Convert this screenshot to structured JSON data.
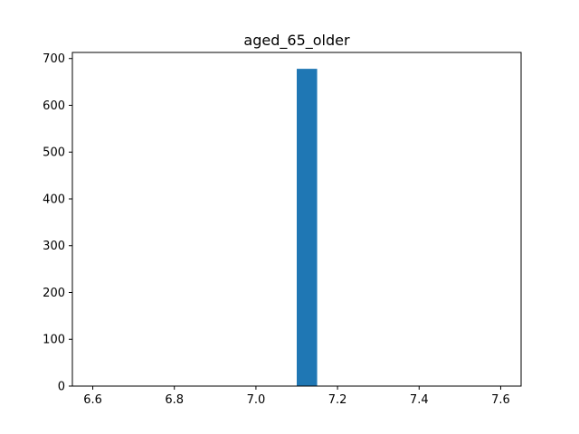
{
  "chart_data": {
    "type": "bar",
    "title": "aged_65_older",
    "xlabel": "",
    "ylabel": "",
    "xlim": [
      6.55,
      7.65
    ],
    "ylim": [
      0,
      713
    ],
    "x_ticks": [
      "6.6",
      "6.8",
      "7.0",
      "7.2",
      "7.4",
      "7.6"
    ],
    "y_ticks": [
      "0",
      "100",
      "200",
      "300",
      "400",
      "500",
      "600",
      "700"
    ],
    "bins": [
      {
        "x0": 7.1,
        "x1": 7.15,
        "value": 678
      }
    ],
    "grid": false,
    "bar_color": "#1f77b4"
  }
}
